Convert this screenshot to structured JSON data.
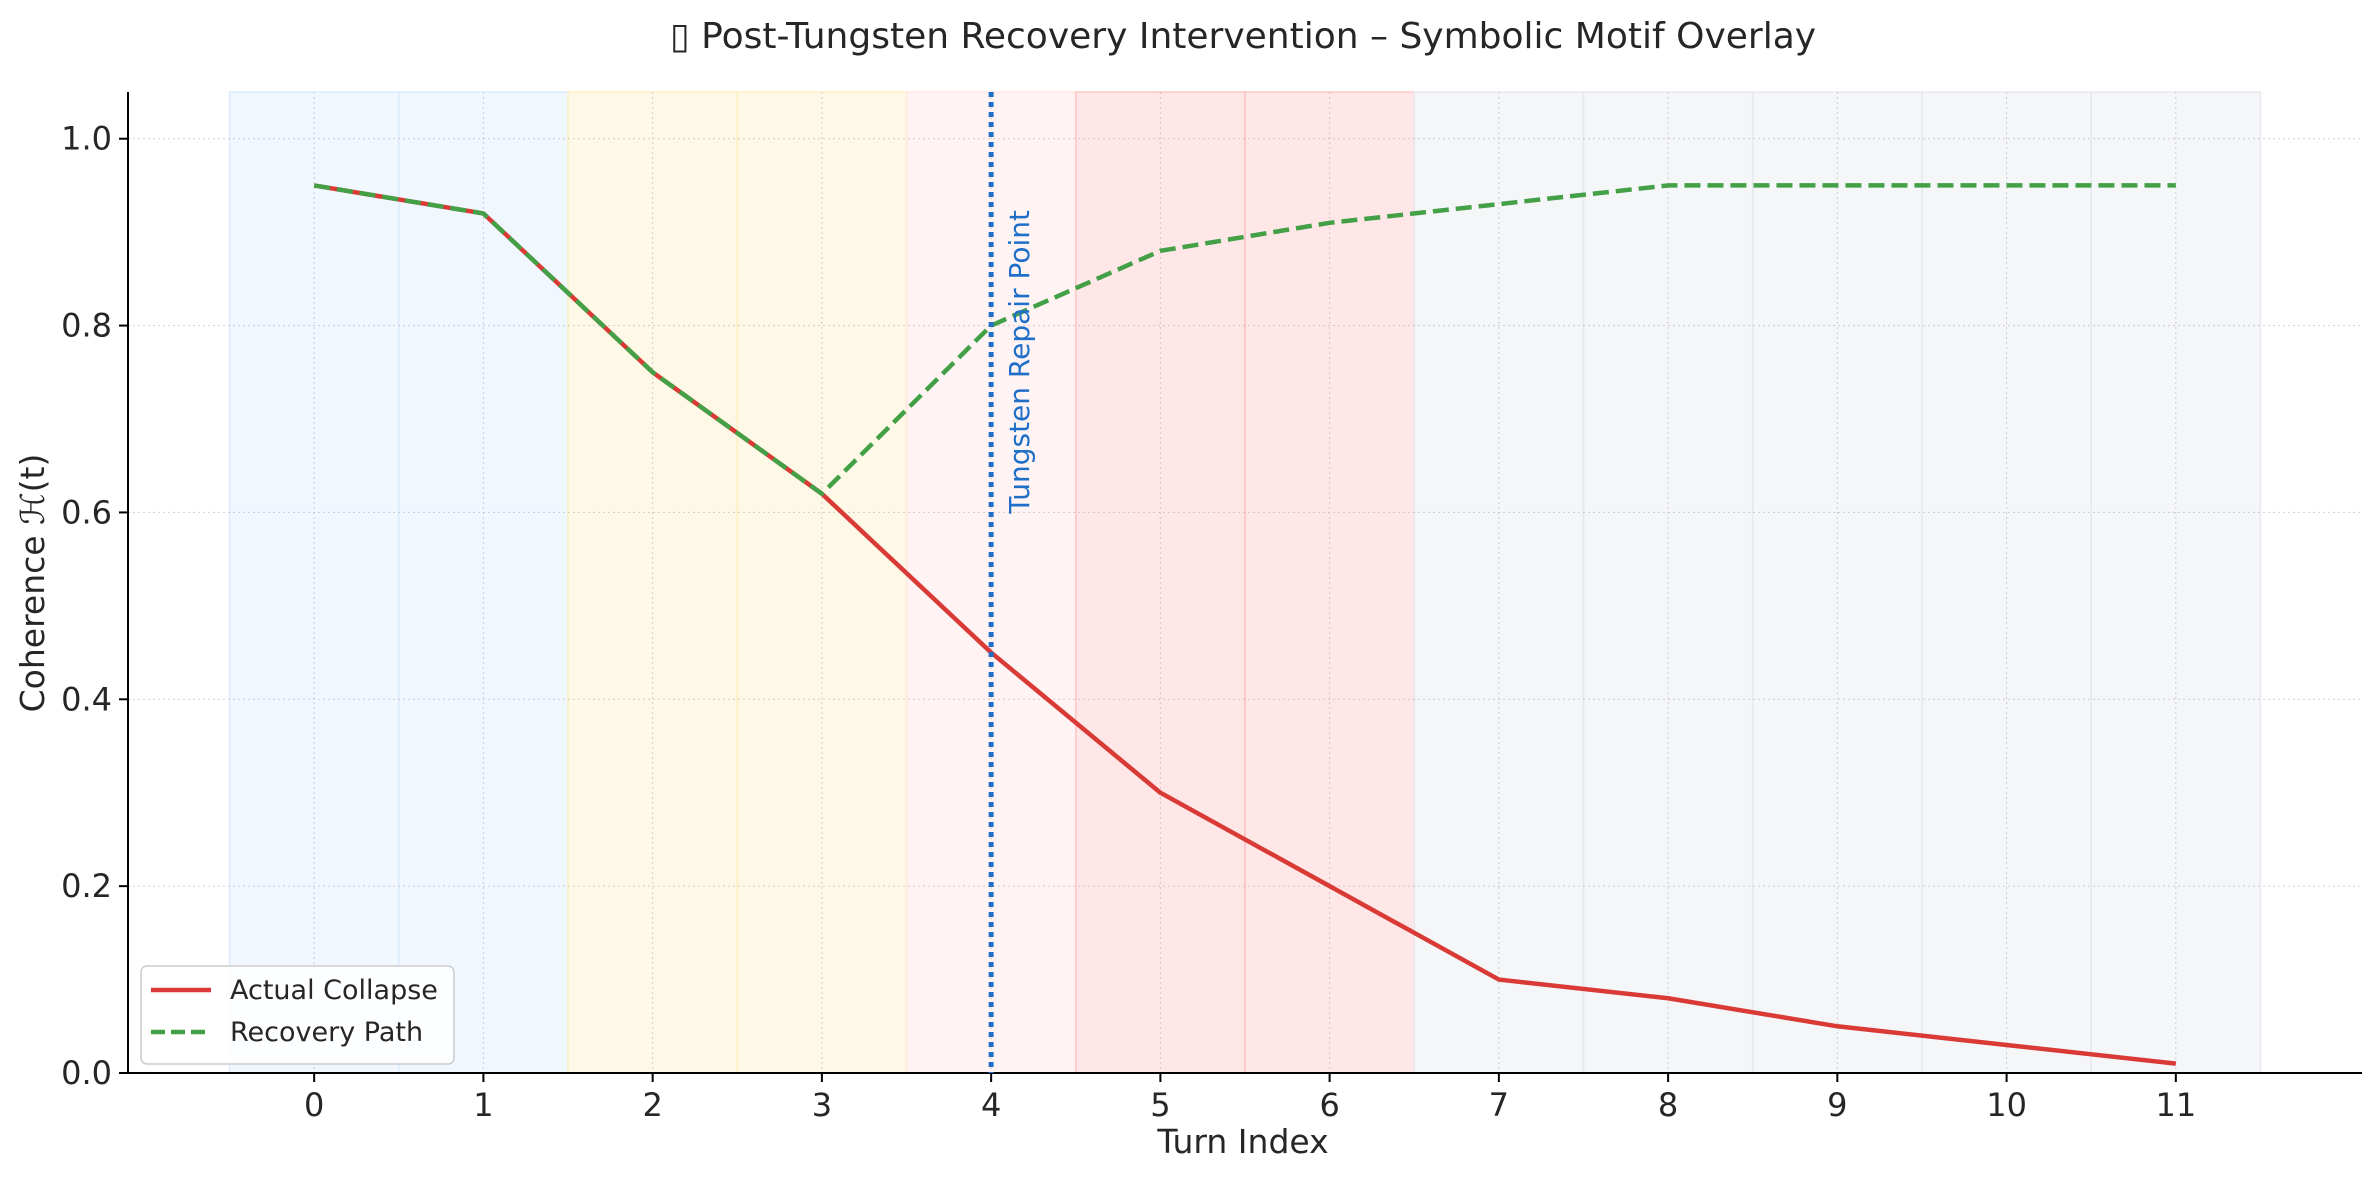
{
  "chart_data": {
    "type": "line",
    "title": "▯ Post-Tungsten Recovery Intervention – Symbolic Motif Overlay",
    "xlabel": "Turn Index",
    "ylabel": "Coherence ℋ(t)",
    "x": [
      0,
      1,
      2,
      3,
      4,
      5,
      6,
      7,
      8,
      9,
      10,
      11
    ],
    "xlim": [
      -1.1,
      12.1
    ],
    "ylim": [
      0,
      1.05
    ],
    "x_ticks": [
      "0",
      "1",
      "2",
      "3",
      "4",
      "5",
      "6",
      "7",
      "8",
      "9",
      "10",
      "11"
    ],
    "y_ticks": [
      "0.0",
      "0.2",
      "0.4",
      "0.6",
      "0.8",
      "1.0"
    ],
    "y_tick_values": [
      0,
      0.2,
      0.4,
      0.6,
      0.8,
      1.0
    ],
    "grid": true,
    "legend_position": "lower-left",
    "series": [
      {
        "name": "Actual Collapse",
        "style": "solid",
        "color": "#d93a35",
        "values": [
          0.95,
          0.92,
          0.75,
          0.62,
          0.45,
          0.3,
          0.2,
          0.1,
          0.08,
          0.05,
          0.03,
          0.01
        ]
      },
      {
        "name": "Recovery Path",
        "style": "dashed",
        "color": "#43a047",
        "values": [
          0.95,
          0.92,
          0.75,
          0.62,
          0.8,
          0.88,
          0.91,
          0.93,
          0.95,
          0.95,
          0.95,
          0.95
        ]
      }
    ],
    "vertical_marker": {
      "x": 4,
      "label": "Tungsten Repair Point",
      "color": "#1f6fc9",
      "style": "dotted"
    },
    "motif_bands": [
      {
        "x": -0.5,
        "color": "#dbeafe",
        "opacity": 0.4
      },
      {
        "x": 0.5,
        "color": "#dbeafe",
        "opacity": 0.4
      },
      {
        "x": 1.5,
        "color": "#fdefc0",
        "opacity": 0.4
      },
      {
        "x": 2.5,
        "color": "#fdefc0",
        "opacity": 0.4
      },
      {
        "x": 3.5,
        "color": "#ffe4e1",
        "opacity": 0.4
      },
      {
        "x": 4.5,
        "color": "#ffc2c2",
        "opacity": 0.4
      },
      {
        "x": 5.5,
        "color": "#ffc2c2",
        "opacity": 0.4
      },
      {
        "x": 6.5,
        "color": "#e6e8ee",
        "opacity": 0.4
      },
      {
        "x": 7.5,
        "color": "#e6e8ee",
        "opacity": 0.4
      },
      {
        "x": 8.5,
        "color": "#e6e8ee",
        "opacity": 0.4
      },
      {
        "x": 9.5,
        "color": "#e6e8ee",
        "opacity": 0.4
      },
      {
        "x": 10.5,
        "color": "#e6e8ee",
        "opacity": 0.4
      }
    ],
    "band_width": 1
  }
}
